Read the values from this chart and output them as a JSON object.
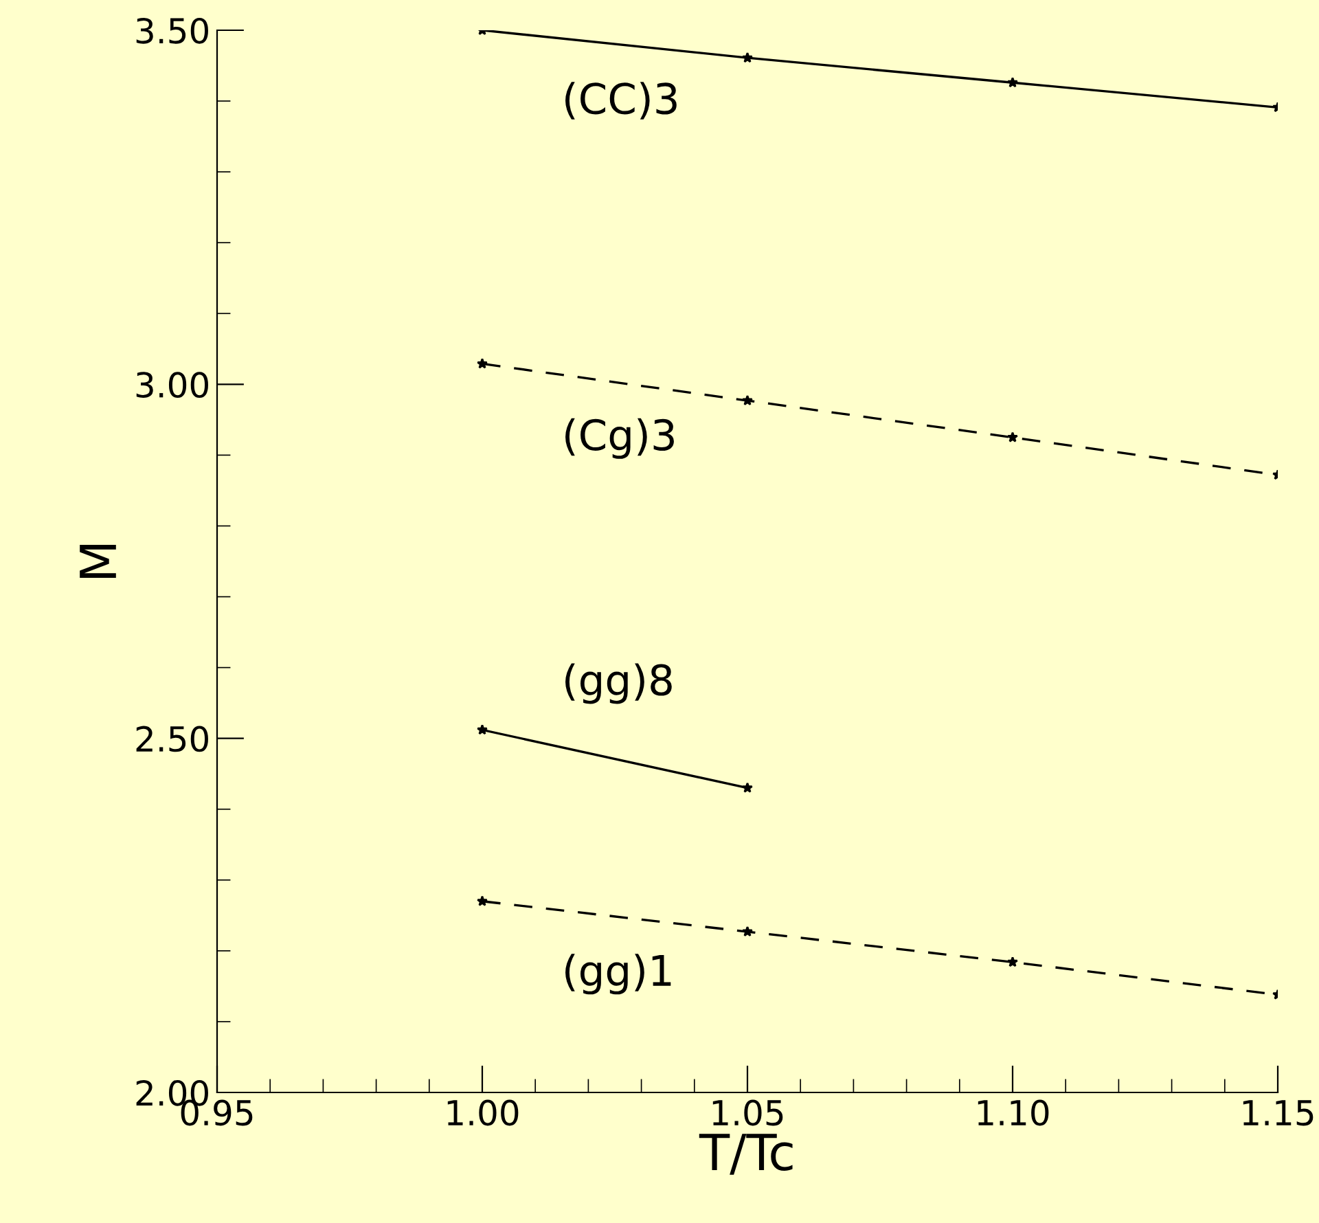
{
  "chart_data": {
    "type": "line",
    "xlabel": "T/Tc",
    "ylabel": "M",
    "x": [
      1.0,
      1.05,
      1.1,
      1.15
    ],
    "series": [
      {
        "name": "(CC)3",
        "color": "#000000",
        "line_style": "solid",
        "values": [
          3.5,
          3.461,
          3.426,
          3.391
        ]
      },
      {
        "name": "(Cg)3",
        "color": "#000000",
        "line_style": "dashed",
        "values": [
          3.029,
          2.977,
          2.925,
          2.872
        ]
      },
      {
        "name": "(gg)8",
        "color": "#000000",
        "line_style": "solid",
        "values": [
          2.512,
          2.43,
          null,
          null
        ]
      },
      {
        "name": "(gg)1",
        "color": "#000000",
        "line_style": "dashed",
        "values": [
          2.27,
          2.227,
          2.184,
          2.138
        ]
      }
    ],
    "marker": "star",
    "grid": false,
    "legend": false,
    "xlim": [
      0.95,
      1.15
    ],
    "xticks": [
      {
        "value": 0.95,
        "label": "0.95"
      },
      {
        "value": 1.0,
        "label": "1.00"
      },
      {
        "value": 1.05,
        "label": "1.05"
      },
      {
        "value": 1.1,
        "label": "1.10"
      },
      {
        "value": 1.15,
        "label": "1.15"
      }
    ],
    "ylim": [
      2.0,
      3.5
    ],
    "yticks": [
      {
        "value": 2.0,
        "label": "2.00"
      },
      {
        "value": 2.5,
        "label": "2.50"
      },
      {
        "value": 3.0,
        "label": "3.00"
      },
      {
        "value": 3.5,
        "label": "3.50"
      }
    ]
  }
}
